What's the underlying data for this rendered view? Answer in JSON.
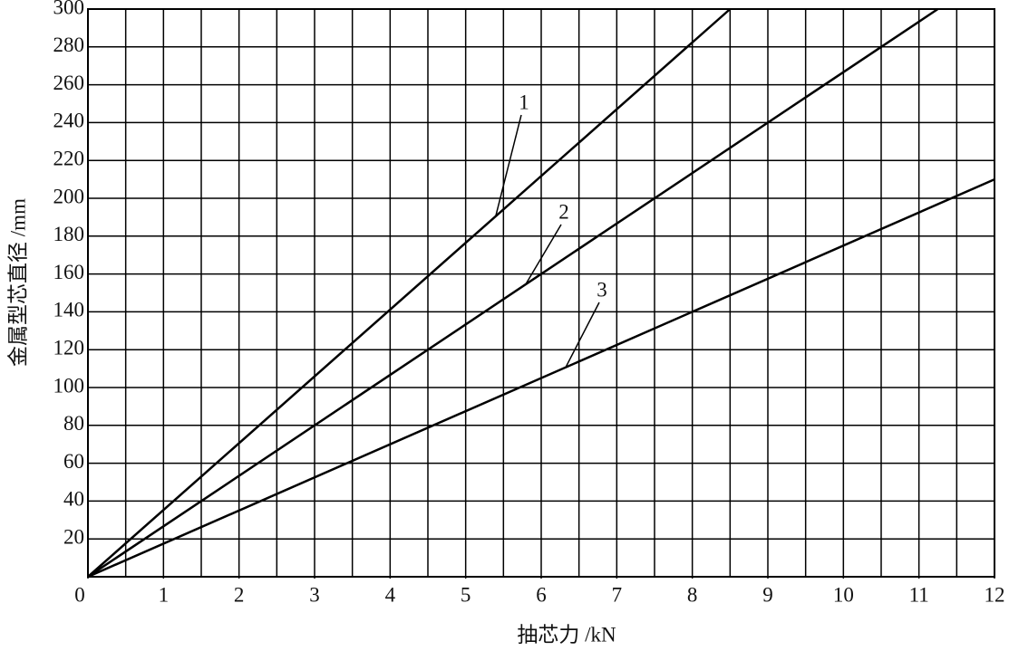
{
  "chart_data": {
    "type": "line",
    "x_label": "抽芯力 /kN",
    "y_label": "金属型芯直径 /mm",
    "xlim": [
      0,
      12
    ],
    "ylim": [
      0,
      300
    ],
    "xticks": [
      0,
      1,
      2,
      3,
      4,
      5,
      6,
      7,
      8,
      9,
      10,
      11,
      12
    ],
    "yticks": [
      20,
      40,
      60,
      80,
      100,
      120,
      140,
      160,
      180,
      200,
      220,
      240,
      260,
      280,
      300
    ],
    "xgrid": [
      0.5,
      1,
      1.5,
      2,
      2.5,
      3,
      3.5,
      4,
      4.5,
      5,
      5.5,
      6,
      6.5,
      7,
      7.5,
      8,
      8.5,
      9,
      9.5,
      10,
      10.5,
      11,
      11.5
    ],
    "grid": true,
    "series": [
      {
        "name": "1",
        "color": "#000000",
        "x": [
          0,
          8.5
        ],
        "values": [
          0,
          300
        ]
      },
      {
        "name": "2",
        "color": "#000000",
        "x": [
          0,
          11.25
        ],
        "values": [
          0,
          300
        ]
      },
      {
        "name": "3",
        "color": "#000000",
        "x": [
          0,
          12
        ],
        "values": [
          0,
          210
        ]
      }
    ]
  }
}
